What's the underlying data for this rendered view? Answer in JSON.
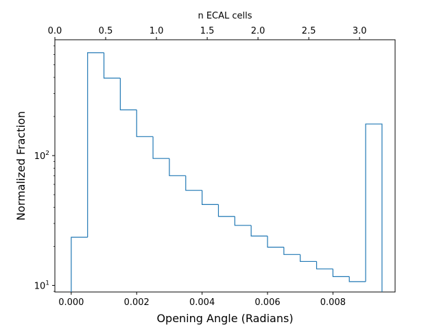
{
  "chart_data": {
    "type": "histogram",
    "title": "",
    "xlabel": "Opening Angle (Radians)",
    "ylabel": "Normalized Fraction",
    "x2label": "n ECAL cells",
    "yscale": "log",
    "xlim": [
      -0.0005,
      0.0099
    ],
    "ylim": [
      8.9,
      780
    ],
    "x2lim": [
      0.0,
      3.35
    ],
    "grid": false,
    "legend": "none",
    "line_color": "#1f77b4",
    "xticks": [
      {
        "value": 0.0,
        "label": "0.000"
      },
      {
        "value": 0.002,
        "label": "0.002"
      },
      {
        "value": 0.004,
        "label": "0.004"
      },
      {
        "value": 0.006,
        "label": "0.006"
      },
      {
        "value": 0.008,
        "label": "0.008"
      }
    ],
    "x2ticks": [
      {
        "value": 0.0,
        "label": "0.0"
      },
      {
        "value": 0.5,
        "label": "0.5"
      },
      {
        "value": 1.0,
        "label": "1.0"
      },
      {
        "value": 1.5,
        "label": "1.5"
      },
      {
        "value": 2.0,
        "label": "2.0"
      },
      {
        "value": 2.5,
        "label": "2.5"
      },
      {
        "value": 3.0,
        "label": "3.0"
      }
    ],
    "yticks": [
      {
        "value": 10,
        "base": "10",
        "exp": "1"
      },
      {
        "value": 100,
        "base": "10",
        "exp": "2"
      }
    ],
    "bins": [
      {
        "x0": 0.0,
        "x1": 0.0005,
        "value": 23.5
      },
      {
        "x0": 0.0005,
        "x1": 0.001,
        "value": 620
      },
      {
        "x0": 0.001,
        "x1": 0.0015,
        "value": 395
      },
      {
        "x0": 0.0015,
        "x1": 0.002,
        "value": 225
      },
      {
        "x0": 0.002,
        "x1": 0.0025,
        "value": 140
      },
      {
        "x0": 0.0025,
        "x1": 0.003,
        "value": 95
      },
      {
        "x0": 0.003,
        "x1": 0.0035,
        "value": 70
      },
      {
        "x0": 0.0035,
        "x1": 0.004,
        "value": 54
      },
      {
        "x0": 0.004,
        "x1": 0.0045,
        "value": 42
      },
      {
        "x0": 0.0045,
        "x1": 0.005,
        "value": 34
      },
      {
        "x0": 0.005,
        "x1": 0.0055,
        "value": 29
      },
      {
        "x0": 0.0055,
        "x1": 0.006,
        "value": 24
      },
      {
        "x0": 0.006,
        "x1": 0.0065,
        "value": 19.7
      },
      {
        "x0": 0.0065,
        "x1": 0.007,
        "value": 17.3
      },
      {
        "x0": 0.007,
        "x1": 0.0075,
        "value": 15.3
      },
      {
        "x0": 0.0075,
        "x1": 0.008,
        "value": 13.4
      },
      {
        "x0": 0.008,
        "x1": 0.0085,
        "value": 11.7
      },
      {
        "x0": 0.0085,
        "x1": 0.009,
        "value": 10.7
      },
      {
        "x0": 0.009,
        "x1": 0.0095,
        "value": 175
      }
    ]
  }
}
